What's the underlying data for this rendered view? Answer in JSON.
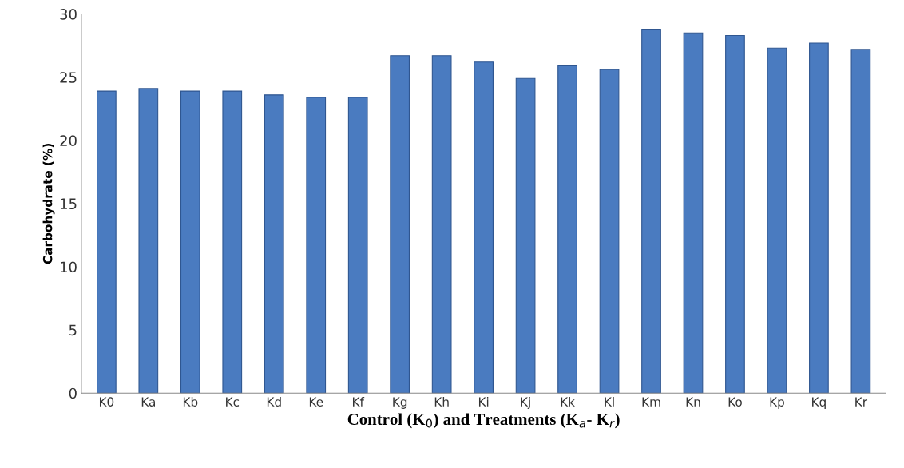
{
  "chart_data": {
    "type": "bar",
    "xlabel": "Control (K$_{0}$) and Treatments (K$_{a}$- K$_{r}$)",
    "ylabel": "Carbohydrate (%)",
    "categories": [
      "K0",
      "Ka",
      "Kb",
      "Kc",
      "Kd",
      "Ke",
      "Kf",
      "Kg",
      "Kh",
      "Ki",
      "Kj",
      "Kk",
      "Kl",
      "Km",
      "Kn",
      "Ko",
      "Kp",
      "Kq",
      "Kr"
    ],
    "values": [
      23.9,
      24.1,
      23.9,
      23.9,
      23.6,
      23.4,
      23.4,
      26.7,
      26.7,
      26.2,
      24.9,
      25.9,
      25.6,
      28.8,
      28.5,
      28.3,
      27.3,
      27.7,
      27.2
    ],
    "color": "#4a7bc0",
    "ylim": [
      0,
      30
    ],
    "yticks": [
      0,
      5,
      10,
      15,
      20,
      25,
      30
    ],
    "grid": false
  }
}
